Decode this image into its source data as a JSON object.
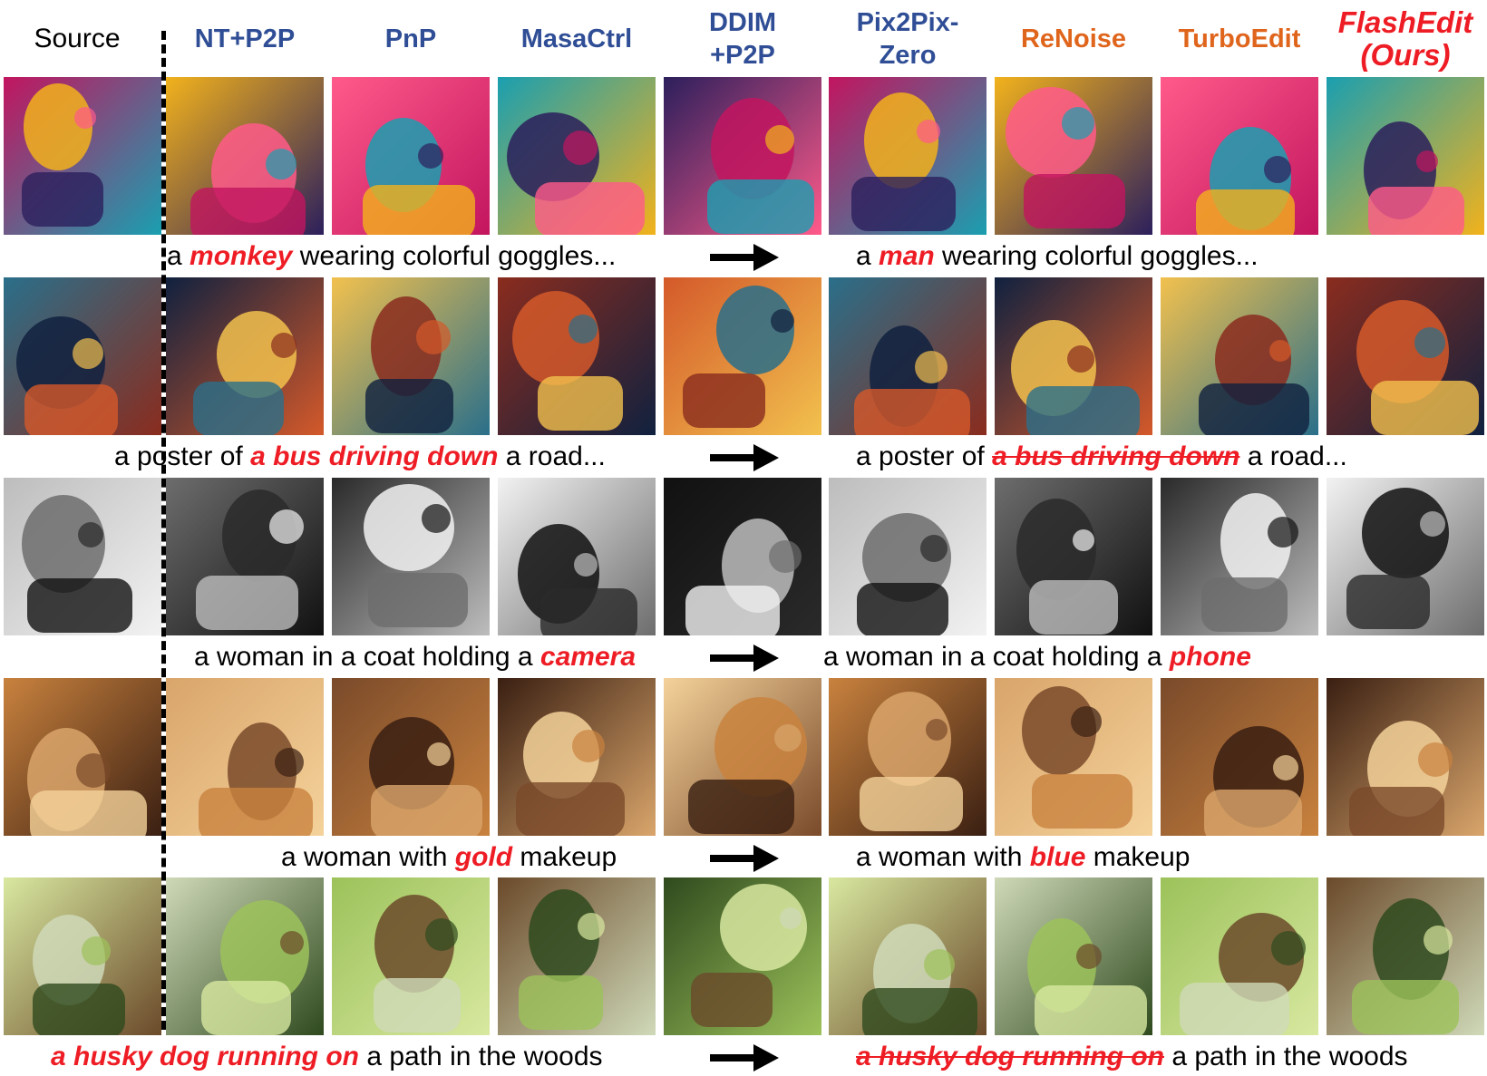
{
  "headers": {
    "source": "Source",
    "methods": [
      {
        "lines": [
          "NT+P2P"
        ],
        "color": "blue"
      },
      {
        "lines": [
          "PnP"
        ],
        "color": "blue"
      },
      {
        "lines": [
          "MasaCtrl"
        ],
        "color": "blue"
      },
      {
        "lines": [
          "DDIM",
          "+P2P"
        ],
        "color": "blue"
      },
      {
        "lines": [
          "Pix2Pix-",
          "Zero"
        ],
        "color": "blue"
      },
      {
        "lines": [
          "ReNoise"
        ],
        "color": "orange"
      },
      {
        "lines": [
          "TurboEdit"
        ],
        "color": "orange"
      },
      {
        "lines": [
          "FlashEdit",
          "(Ours)"
        ],
        "color": "red"
      }
    ]
  },
  "rows": [
    {
      "images": [
        "monkey wearing colorful goggles (source)",
        "NT+P2P result",
        "PnP result",
        "MasaCtrl result",
        "DDIM+P2P result",
        "Pix2Pix-Zero result",
        "ReNoise result",
        "TurboEdit result",
        "FlashEdit result"
      ],
      "source_caption": [
        {
          "t": "a "
        },
        {
          "t": "monkey",
          "hl": true
        },
        {
          "t": " wearing colorful goggles..."
        }
      ],
      "target_caption": [
        {
          "t": "a "
        },
        {
          "t": "man",
          "hl": true
        },
        {
          "t": " wearing colorful goggles..."
        }
      ]
    },
    {
      "images": [
        "poster of a bus driving down a road (source)",
        "NT+P2P result",
        "PnP result",
        "MasaCtrl result",
        "DDIM+P2P result",
        "Pix2Pix-Zero result",
        "ReNoise result",
        "TurboEdit result",
        "FlashEdit result"
      ],
      "source_caption": [
        {
          "t": "a poster of "
        },
        {
          "t": "a bus driving down",
          "hl": true
        },
        {
          "t": " a road..."
        }
      ],
      "target_caption": [
        {
          "t": "a poster of "
        },
        {
          "t": "a bus driving down",
          "hl": true,
          "strike": true
        },
        {
          "t": " a road..."
        }
      ]
    },
    {
      "images": [
        "woman in a coat holding a camera (source)",
        "NT+P2P result",
        "PnP result",
        "MasaCtrl result",
        "DDIM+P2P result",
        "Pix2Pix-Zero result",
        "ReNoise result",
        "TurboEdit result",
        "FlashEdit result"
      ],
      "source_caption": [
        {
          "t": "a woman in a coat holding a "
        },
        {
          "t": "camera",
          "hl": true
        }
      ],
      "target_caption": [
        {
          "t": "a woman in a coat holding a "
        },
        {
          "t": "phone",
          "hl": true
        }
      ]
    },
    {
      "images": [
        "woman with gold makeup (source)",
        "NT+P2P result",
        "PnP result",
        "MasaCtrl result",
        "DDIM+P2P result",
        "Pix2Pix-Zero result",
        "ReNoise result",
        "TurboEdit result",
        "FlashEdit result"
      ],
      "source_caption": [
        {
          "t": "a woman with "
        },
        {
          "t": "gold",
          "hl": true
        },
        {
          "t": " makeup"
        }
      ],
      "target_caption": [
        {
          "t": "a woman with "
        },
        {
          "t": "blue",
          "hl": true
        },
        {
          "t": " makeup"
        }
      ]
    },
    {
      "images": [
        "husky dog running on a path in the woods (source)",
        "NT+P2P result",
        "PnP result",
        "MasaCtrl result",
        "DDIM+P2P result",
        "Pix2Pix-Zero result",
        "ReNoise result",
        "TurboEdit result",
        "FlashEdit result"
      ],
      "source_caption": [
        {
          "t": "a husky dog running on",
          "hl": true
        },
        {
          "t": " a path in the woods"
        }
      ],
      "target_caption": [
        {
          "t": "a husky dog running on",
          "hl": true,
          "strike": true
        },
        {
          "t": " a path in the woods"
        }
      ]
    }
  ]
}
